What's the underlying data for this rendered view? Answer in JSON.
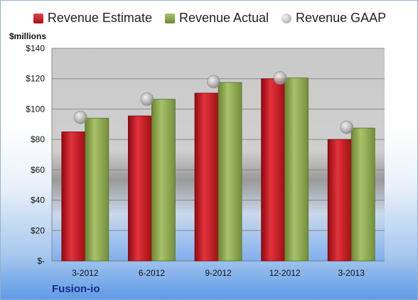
{
  "chart_data": {
    "type": "bar",
    "unit_label": "$millions",
    "categories": [
      "3-2012",
      "6-2012",
      "9-2012",
      "12-2012",
      "3-2013"
    ],
    "series": [
      {
        "name": "Revenue Estimate",
        "type": "bar",
        "color": "#c41a22",
        "values": [
          85,
          95.5,
          110.5,
          120,
          80
        ]
      },
      {
        "name": "Revenue Actual",
        "type": "bar",
        "color": "#8aa84b",
        "values": [
          94,
          106.5,
          117.5,
          120.5,
          87.5
        ]
      },
      {
        "name": "Revenue GAAP",
        "type": "scatter",
        "color": "#aaaaaa",
        "values": [
          94.5,
          106.5,
          118,
          120.5,
          88
        ]
      }
    ],
    "y_ticks": [
      0,
      20,
      40,
      60,
      80,
      100,
      120,
      140
    ],
    "y_tick_labels": [
      "$-",
      "$20",
      "$40",
      "$60",
      "$80",
      "$100",
      "$120",
      "$140"
    ],
    "ylim": [
      0,
      140
    ],
    "grid": true,
    "legend_position": "top"
  },
  "footer": {
    "company": "Fusion-io"
  }
}
